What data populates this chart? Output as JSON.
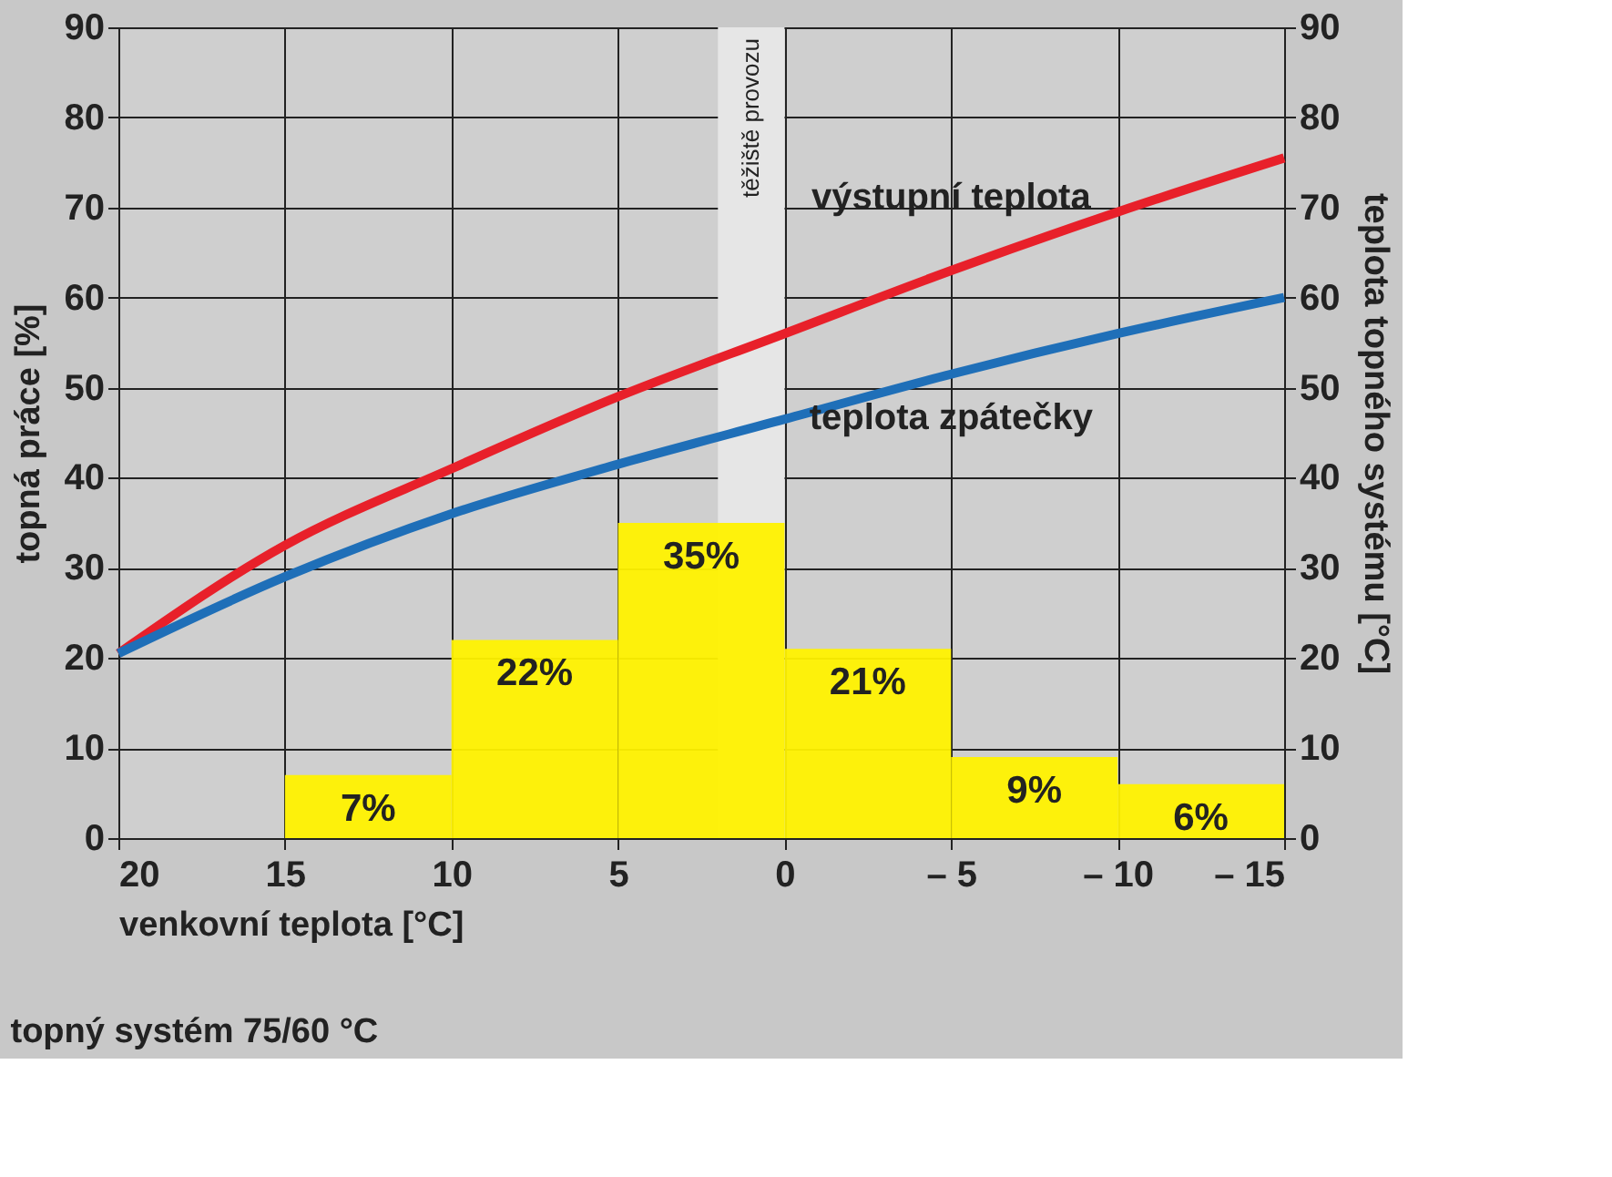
{
  "chart_data": {
    "type": "histogram",
    "xlabel": "venkovní teplota [°C]",
    "ylabel": "topná práce [%]",
    "y2label": "teplota topného systému [°C]",
    "bins": [
      15,
      10,
      5,
      0,
      -5,
      -10,
      -15
    ],
    "values": [
      7,
      22,
      35,
      21,
      9,
      6
    ],
    "value_labels": [
      "7%",
      "22%",
      "35%",
      "21%",
      "9%",
      "6%"
    ],
    "color": "#fff200",
    "series": [
      {
        "name": "výstupní teplota",
        "type": "line",
        "axis": "y2",
        "color": "#e8202a",
        "x": [
          20,
          15,
          10,
          5,
          0,
          -5,
          -10,
          -15
        ],
        "values": [
          20.5,
          32.5,
          41,
          49,
          56,
          63,
          69.5,
          75.5
        ]
      },
      {
        "name": "teplota zpátečky",
        "type": "line",
        "axis": "y2",
        "color": "#1f6fb8",
        "x": [
          20,
          15,
          10,
          5,
          0,
          -5,
          -10,
          -15
        ],
        "values": [
          20.5,
          29,
          36,
          41.5,
          46.5,
          51.5,
          56,
          60
        ]
      }
    ],
    "xlim": [
      20,
      -15
    ],
    "xticks": [
      20,
      15,
      10,
      5,
      0,
      {
        "value": -5,
        "label": "– 5"
      },
      {
        "value": -10,
        "label": "– 10"
      },
      {
        "value": -15,
        "label": "– 15"
      }
    ],
    "ylim": [
      0,
      90
    ],
    "yticks": [
      0,
      10,
      20,
      30,
      40,
      50,
      60,
      70,
      80,
      90
    ],
    "y2lim": [
      0,
      90
    ],
    "y2ticks": [
      0,
      10,
      20,
      30,
      40,
      50,
      60,
      70,
      80,
      90
    ],
    "bands": [
      {
        "axis": "x",
        "from": 2,
        "to": 0,
        "label": "těžiště provozu",
        "color": "#e6e6e6"
      }
    ],
    "annotations": [
      "topný systém 75/60 °C"
    ],
    "grid": true,
    "legend": false
  }
}
